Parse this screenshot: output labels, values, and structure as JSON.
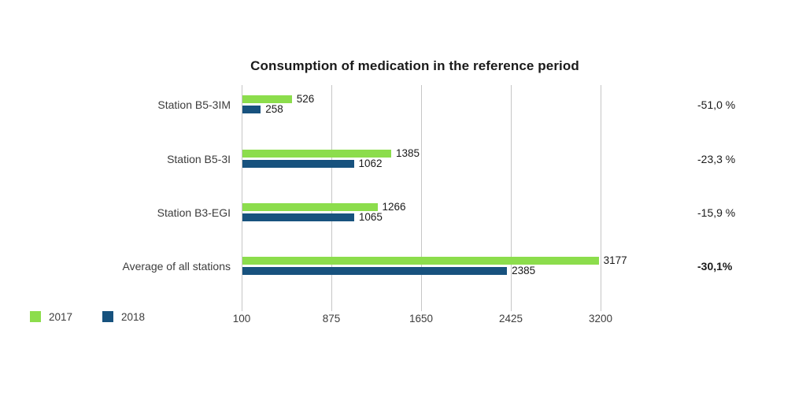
{
  "chart_data": {
    "type": "bar",
    "orientation": "horizontal",
    "title": "Consumption of medication in the reference period",
    "categories": [
      "Station B5-3IM",
      "Station B5-3I",
      "Station B3-EGI",
      "Average of all stations"
    ],
    "series": [
      {
        "name": "2017",
        "color": "#8cdd4c",
        "values": [
          526,
          1385,
          1266,
          3177
        ]
      },
      {
        "name": "2018",
        "color": "#17527e",
        "values": [
          258,
          1062,
          1065,
          2385
        ]
      }
    ],
    "change_labels": [
      {
        "text": "-51,0 %",
        "bold": false
      },
      {
        "text": "-23,3 %",
        "bold": false
      },
      {
        "text": "-15,9 %",
        "bold": false
      },
      {
        "text": "-30,1%",
        "bold": true
      }
    ],
    "x_axis": {
      "min": 100,
      "max": 3200,
      "ticks": [
        "100",
        "875",
        "1650",
        "2425",
        "3200"
      ]
    },
    "legend": {
      "position": "bottom-left"
    },
    "grid": "vertical-only",
    "colors": {
      "background": "#ffffff",
      "gridline": "#c6c6c6",
      "text": "#1a1a1a"
    }
  }
}
